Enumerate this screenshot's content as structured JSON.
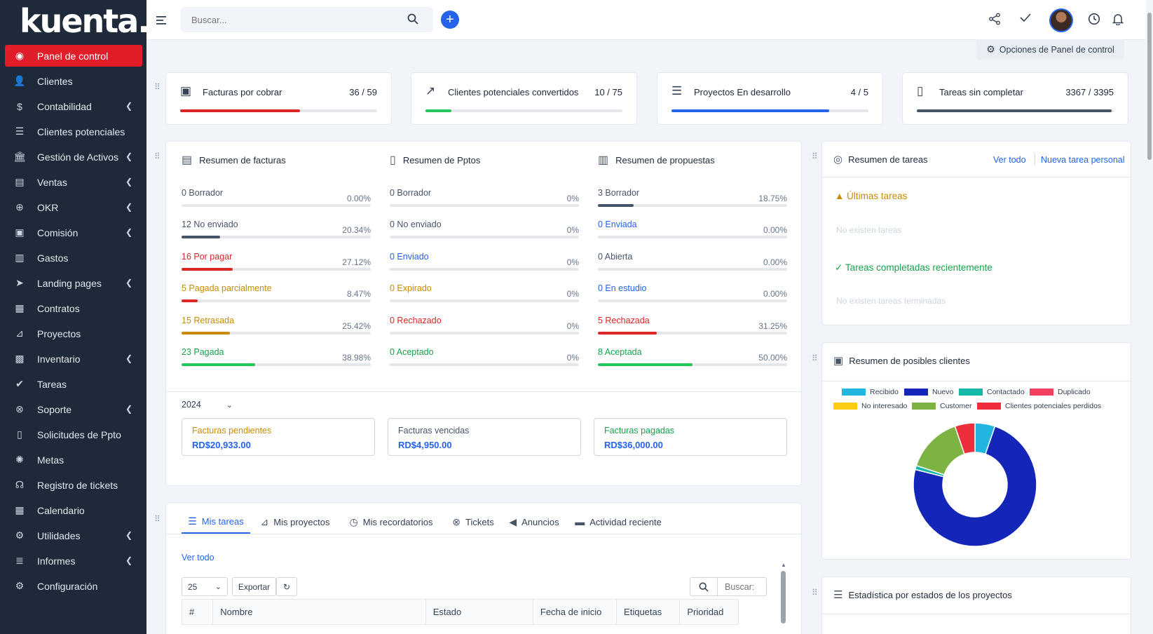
{
  "brand": "kuenta.",
  "sidebar": {
    "items": [
      {
        "label": "Panel de control",
        "icon": "dashboard-icon",
        "glyph": "◉",
        "active": true,
        "chevron": false
      },
      {
        "label": "Clientes",
        "icon": "user-icon",
        "glyph": "👤",
        "active": false,
        "chevron": false
      },
      {
        "label": "Contabilidad",
        "icon": "dollar-icon",
        "glyph": "$",
        "active": false,
        "chevron": true
      },
      {
        "label": "Clientes potenciales",
        "icon": "leads-icon",
        "glyph": "☰",
        "active": false,
        "chevron": false
      },
      {
        "label": "Gestión de Activos",
        "icon": "bank-icon",
        "glyph": "🏛",
        "active": false,
        "chevron": true
      },
      {
        "label": "Ventas",
        "icon": "balance-icon",
        "glyph": "▤",
        "active": false,
        "chevron": true
      },
      {
        "label": "OKR",
        "icon": "target-icon",
        "glyph": "⊕",
        "active": false,
        "chevron": true
      },
      {
        "label": "Comisión",
        "icon": "money-icon",
        "glyph": "▣",
        "active": false,
        "chevron": true
      },
      {
        "label": "Gastos",
        "icon": "receipt-icon",
        "glyph": "▥",
        "active": false,
        "chevron": false
      },
      {
        "label": "Landing pages",
        "icon": "paper-plane-icon",
        "glyph": "➤",
        "active": false,
        "chevron": true
      },
      {
        "label": "Contratos",
        "icon": "contract-icon",
        "glyph": "▦",
        "active": false,
        "chevron": false
      },
      {
        "label": "Proyectos",
        "icon": "chart-line-icon",
        "glyph": "⊿",
        "active": false,
        "chevron": false
      },
      {
        "label": "Inventario",
        "icon": "warehouse-icon",
        "glyph": "▩",
        "active": false,
        "chevron": true
      },
      {
        "label": "Tareas",
        "icon": "check-circle-icon",
        "glyph": "✔",
        "active": false,
        "chevron": false
      },
      {
        "label": "Soporte",
        "icon": "lifebuoy-icon",
        "glyph": "⊗",
        "active": false,
        "chevron": true
      },
      {
        "label": "Solicitudes de Ppto",
        "icon": "file-icon",
        "glyph": "▯",
        "active": false,
        "chevron": false
      },
      {
        "label": "Metas",
        "icon": "spinner-icon",
        "glyph": "✺",
        "active": false,
        "chevron": false
      },
      {
        "label": "Registro de tickets",
        "icon": "headset-icon",
        "glyph": "☊",
        "active": false,
        "chevron": false
      },
      {
        "label": "Calendario",
        "icon": "calendar-icon",
        "glyph": "▦",
        "active": false,
        "chevron": false
      },
      {
        "label": "Utilidades",
        "icon": "cogs-icon",
        "glyph": "⚙",
        "active": false,
        "chevron": true
      },
      {
        "label": "Informes",
        "icon": "report-icon",
        "glyph": "≣",
        "active": false,
        "chevron": true
      },
      {
        "label": "Configuración",
        "icon": "gear-icon",
        "glyph": "⚙",
        "active": false,
        "chevron": false
      }
    ]
  },
  "header": {
    "search_placeholder": "Buscar..."
  },
  "options_label": "Opciones de Panel de control",
  "stats": [
    {
      "title": "Facturas por cobrar",
      "count": "36 / 59",
      "progress": 0.61,
      "color": "#dc2626",
      "icon": "money-bill-icon",
      "glyph": "▣"
    },
    {
      "title": "Clientes potenciales convertidos",
      "count": "10 / 75",
      "progress": 0.13,
      "color": "#22c55e",
      "icon": "trend-up-icon",
      "glyph": "↗"
    },
    {
      "title": "Proyectos En desarrollo",
      "count": "4 / 5",
      "progress": 0.8,
      "color": "#2563eb",
      "icon": "sliders-icon",
      "glyph": "☰"
    },
    {
      "title": "Tareas sin completar",
      "count": "3367 / 3395",
      "progress": 0.99,
      "color": "#475569",
      "icon": "file-check-icon",
      "glyph": "▯"
    }
  ],
  "summaries": [
    {
      "title": "Resumen de facturas",
      "rows": [
        {
          "label": "0 Borrador",
          "pct": "0.00%",
          "value": 0,
          "color": "#475569",
          "text_color": "#475569"
        },
        {
          "label": "12 No enviado",
          "pct": "20.34%",
          "value": 0.2034,
          "color": "#475569",
          "text_color": "#475569"
        },
        {
          "label": "16 Por pagar",
          "pct": "27.12%",
          "value": 0.2712,
          "color": "#dc2626",
          "text_color": "#dc2626"
        },
        {
          "label": "5 Pagada parcialmente",
          "pct": "8.47%",
          "value": 0.0847,
          "color": "#dc2626",
          "text_color": "#ca8a04"
        },
        {
          "label": "15 Retrasada",
          "pct": "25.42%",
          "value": 0.2542,
          "color": "#ca8a04",
          "text_color": "#ca8a04"
        },
        {
          "label": "23 Pagada",
          "pct": "38.98%",
          "value": 0.3898,
          "color": "#22c55e",
          "text_color": "#16a34a"
        }
      ]
    },
    {
      "title": "Resumen de Pptos",
      "rows": [
        {
          "label": "0 Borrador",
          "pct": "0%",
          "value": 0,
          "color": "#475569",
          "text_color": "#475569"
        },
        {
          "label": "0 No enviado",
          "pct": "0%",
          "value": 0,
          "color": "#475569",
          "text_color": "#475569"
        },
        {
          "label": "0 Enviado",
          "pct": "0%",
          "value": 0,
          "color": "#2563eb",
          "text_color": "#2563eb"
        },
        {
          "label": "0 Expirado",
          "pct": "0%",
          "value": 0,
          "color": "#ca8a04",
          "text_color": "#ca8a04"
        },
        {
          "label": "0 Rechazado",
          "pct": "0%",
          "value": 0,
          "color": "#dc2626",
          "text_color": "#dc2626"
        },
        {
          "label": "0 Aceptado",
          "pct": "0%",
          "value": 0,
          "color": "#22c55e",
          "text_color": "#16a34a"
        }
      ]
    },
    {
      "title": "Resumen de propuestas",
      "rows": [
        {
          "label": "3 Borrador",
          "pct": "18.75%",
          "value": 0.1875,
          "color": "#475569",
          "text_color": "#475569"
        },
        {
          "label": "0 Enviada",
          "pct": "0.00%",
          "value": 0,
          "color": "#2563eb",
          "text_color": "#2563eb"
        },
        {
          "label": "0 Abierta",
          "pct": "0.00%",
          "value": 0,
          "color": "#475569",
          "text_color": "#475569"
        },
        {
          "label": "0 En estudio",
          "pct": "0.00%",
          "value": 0,
          "color": "#2563eb",
          "text_color": "#2563eb"
        },
        {
          "label": "5 Rechazada",
          "pct": "31.25%",
          "value": 0.3125,
          "color": "#dc2626",
          "text_color": "#dc2626"
        },
        {
          "label": "8 Aceptada",
          "pct": "50.00%",
          "value": 0.5,
          "color": "#22c55e",
          "text_color": "#16a34a"
        }
      ]
    }
  ],
  "year": "2024",
  "totals": [
    {
      "label": "Facturas pendientes",
      "value": "RD$20,933.00",
      "label_color": "#ca8a04"
    },
    {
      "label": "Facturas vencidas",
      "value": "RD$4,950.00",
      "label_color": "#475569"
    },
    {
      "label": "Facturas pagadas",
      "value": "RD$36,000.00",
      "label_color": "#16a34a"
    }
  ],
  "tasks_widget": {
    "title": "Resumen de tareas",
    "view_all": "Ver todo",
    "new_task": "Nueva tarea personal",
    "latest_title": "Últimas tareas",
    "latest_empty": "No existen tareas",
    "completed_title": "Tareas completadas recientemente",
    "completed_empty": "No existen tareas terminadas"
  },
  "leads_widget": {
    "title": "Resumen de posibles clientes"
  },
  "chart_data": {
    "type": "pie",
    "donut": true,
    "legend_position": "top",
    "categories": [
      "Recibido",
      "Nuevo",
      "Contactado",
      "Duplicado",
      "No interesado",
      "Customer",
      "Clientes potenciales perdidos"
    ],
    "colors": [
      "#22b5e0",
      "#1426b8",
      "#14b8a6",
      "#f43f5e",
      "#facc15",
      "#7cb342",
      "#ef2e3c"
    ],
    "values": [
      5,
      70,
      1,
      0,
      0,
      14,
      5
    ]
  },
  "projects_stats": {
    "title": "Estadística por estados de los proyectos"
  },
  "tabs": [
    {
      "label": "Mis tareas",
      "icon": "tasks-icon",
      "glyph": "☰",
      "active": true
    },
    {
      "label": "Mis proyectos",
      "icon": "chart-icon",
      "glyph": "⊿",
      "active": false
    },
    {
      "label": "Mis recordatorios",
      "icon": "clock-icon",
      "glyph": "◷",
      "active": false
    },
    {
      "label": "Tickets",
      "icon": "lifebuoy-icon",
      "glyph": "⊗",
      "active": false
    },
    {
      "label": "Anuncios",
      "icon": "bullhorn-icon",
      "glyph": "◀",
      "active": false
    },
    {
      "label": "Actividad reciente",
      "icon": "window-icon",
      "glyph": "▬",
      "active": false
    }
  ],
  "table_controls": {
    "view_all": "Ver todo",
    "page_size": "25",
    "export": "Exportar",
    "search_placeholder": "Buscar:"
  },
  "table_headers": [
    "#",
    "Nombre",
    "Estado",
    "Fecha de inicio",
    "Etiquetas",
    "Prioridad"
  ]
}
